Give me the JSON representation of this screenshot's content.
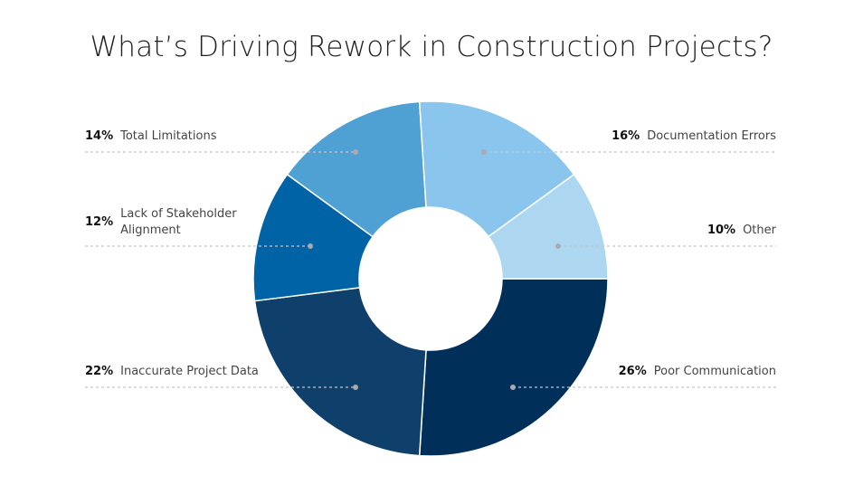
{
  "chart_data": {
    "type": "pie",
    "variant": "donut",
    "title": "What’s Driving Rework in Construction Projects?",
    "start": "3 o'clock, clockwise",
    "slices": [
      {
        "label": "Poor Communication",
        "value": 26,
        "pct_label": "26%",
        "color": "#00305A",
        "side": "right"
      },
      {
        "label": "Inaccurate Project Data",
        "value": 22,
        "pct_label": "22%",
        "color": "#0F3F6B",
        "side": "left"
      },
      {
        "label": "Lack of Stakeholder Alignment",
        "value": 12,
        "pct_label": "12%",
        "color": "#0063A6",
        "side": "left"
      },
      {
        "label": "Total Limitations",
        "value": 14,
        "pct_label": "14%",
        "color": "#4FA1D3",
        "side": "left"
      },
      {
        "label": "Documentation Errors",
        "value": 16,
        "pct_label": "16%",
        "color": "#89C5EC",
        "side": "right"
      },
      {
        "label": "Other",
        "value": 10,
        "pct_label": "10%",
        "color": "#ADD7F1",
        "side": "right"
      }
    ]
  }
}
